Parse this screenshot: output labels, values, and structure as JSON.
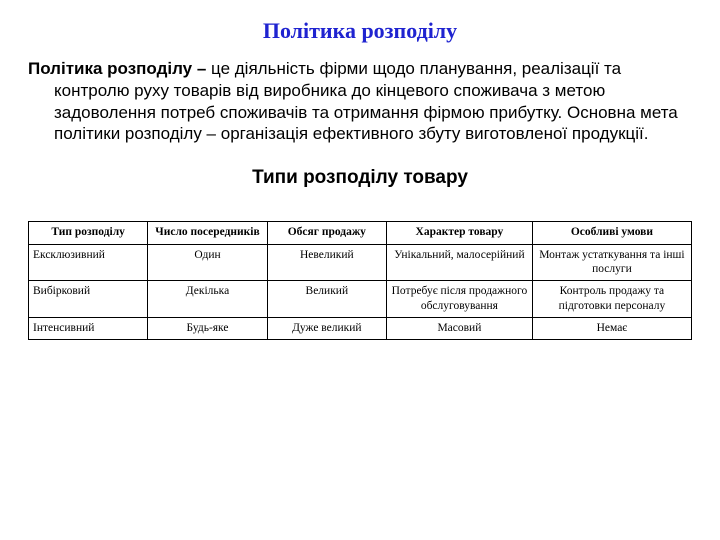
{
  "title": "Політика розподілу",
  "body": {
    "lead": "Політика розподілу –",
    "rest": " це діяльність фірми щодо планування, реалізації та контролю руху товарів від виробника до кінцевого споживача з метою задоволення потреб споживачів та отримання фірмою прибутку. Основна мета політики розподілу – організація ефективного збуту виготовленої продукції."
  },
  "subheading": "Типи розподілу товару",
  "table": {
    "columns": [
      "Тип розподілу",
      "Число посередників",
      "Обсяг продажу",
      "Характер товару",
      "Особливі умови"
    ],
    "rows": [
      [
        "Ексклюзивний",
        "Один",
        "Невеликий",
        "Унікальний, малосерійний",
        "Монтаж устаткування та інші послуги"
      ],
      [
        "Вибірковий",
        "Декілька",
        "Великий",
        "Потребує після продажного обслуговування",
        "Контроль продажу та підготовки персоналу"
      ],
      [
        "Інтенсивний",
        "Будь-яке",
        "Дуже великий",
        "Масовий",
        "Немає"
      ]
    ]
  },
  "colors": {
    "title_color": "#1f23d0",
    "text_color": "#000000",
    "border_color": "#000000",
    "background": "#ffffff"
  }
}
